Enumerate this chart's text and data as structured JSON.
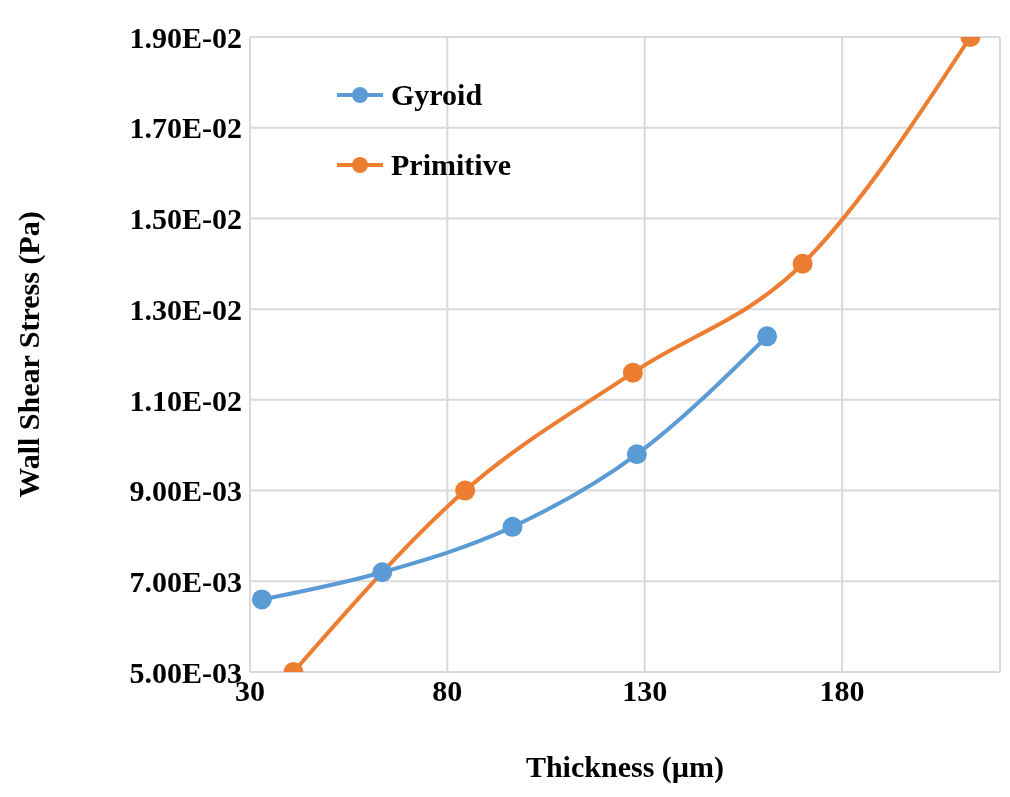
{
  "chart_data": {
    "type": "line",
    "xlabel": "Thickness (µm)",
    "ylabel": "Wall Shear Stress (Pa)",
    "xlim": [
      30,
      220
    ],
    "xticks": [
      30,
      80,
      130,
      180
    ],
    "ylim": [
      0.005,
      0.019
    ],
    "yticks": [
      {
        "value": 0.005,
        "label": "5.00E-03"
      },
      {
        "value": 0.007,
        "label": "7.00E-03"
      },
      {
        "value": 0.009,
        "label": "9.00E-03"
      },
      {
        "value": 0.011,
        "label": "1.10E-02"
      },
      {
        "value": 0.013,
        "label": "1.30E-02"
      },
      {
        "value": 0.015,
        "label": "1.50E-02"
      },
      {
        "value": 0.017,
        "label": "1.70E-02"
      },
      {
        "value": 0.019,
        "label": "1.90E-02"
      }
    ],
    "grid": true,
    "legend": "top left",
    "marker": "circle",
    "line_style": "solid",
    "series": [
      {
        "name": "Gyroid",
        "color": "#5b9bd5",
        "x": [
          33,
          63.5,
          96.5,
          128,
          161
        ],
        "values": [
          0.0066,
          0.0072,
          0.0082,
          0.0098,
          0.0124
        ]
      },
      {
        "name": "Primitive",
        "color": "#ed7d31",
        "x": [
          41,
          84.5,
          127,
          170,
          212.5
        ],
        "values": [
          0.005,
          0.009,
          0.0116,
          0.014,
          0.019
        ]
      }
    ]
  }
}
